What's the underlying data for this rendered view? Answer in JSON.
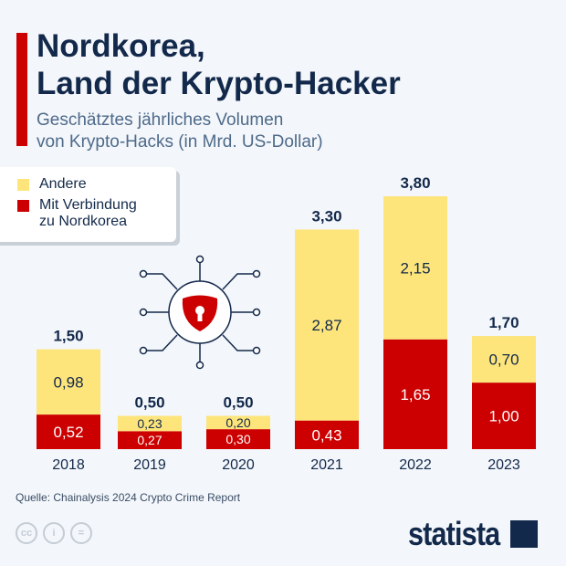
{
  "title_lines": [
    "Nordkorea,",
    "Land der Krypto-Hacker"
  ],
  "subtitle_lines": [
    "Geschätztes jährliches Volumen",
    "von Krypto-Hacks (in Mrd. US-Dollar)"
  ],
  "legend": {
    "other": "Andere",
    "nk_line1": "Mit Verbindung",
    "nk_line2": "zu Nordkorea"
  },
  "source": "Quelle: Chainalysis 2024 Crypto Crime Report",
  "brand": "statista",
  "license_icons": [
    "cc-icon",
    "by-icon",
    "nd-icon"
  ],
  "colors": {
    "nk": "#cc0000",
    "other": "#fde57b",
    "text": "#13294b"
  },
  "chart_data": {
    "type": "bar",
    "stacked": true,
    "categories": [
      "2018",
      "2019",
      "2020",
      "2021",
      "2022",
      "2023"
    ],
    "series": [
      {
        "name": "Mit Verbindung zu Nordkorea",
        "values": [
          0.52,
          0.27,
          0.3,
          0.43,
          1.65,
          1.0
        ],
        "labels": [
          "0,52",
          "0,27",
          "0,30",
          "0,43",
          "1,65",
          "1,00"
        ]
      },
      {
        "name": "Andere",
        "values": [
          0.98,
          0.23,
          0.2,
          2.87,
          2.15,
          0.7
        ],
        "labels": [
          "0,98",
          "0,23",
          "0,20",
          "2,87",
          "2,15",
          "0,70"
        ]
      }
    ],
    "totals": [
      1.5,
      0.5,
      0.5,
      3.3,
      3.8,
      1.7
    ],
    "total_labels": [
      "1,50",
      "0,50",
      "0,50",
      "3,30",
      "3,80",
      "1,70"
    ],
    "ylim": [
      0,
      3.8
    ],
    "grid": false,
    "legend_position": "top-left"
  }
}
